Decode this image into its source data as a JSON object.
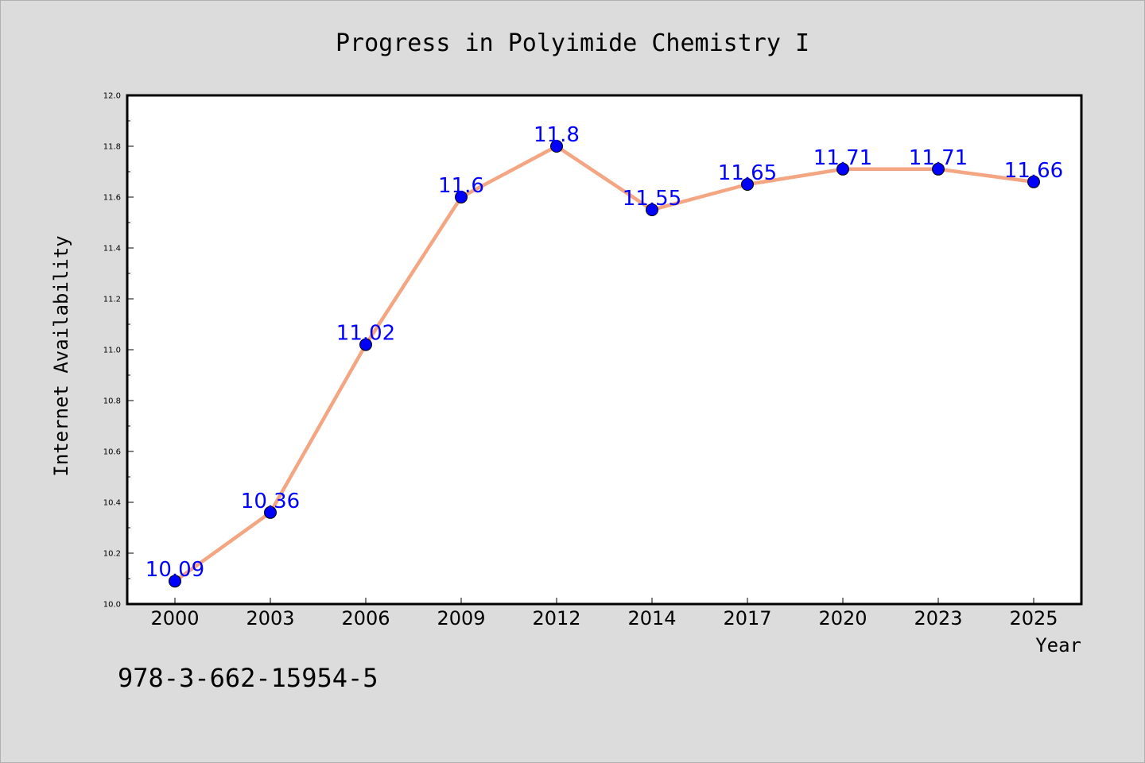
{
  "chart_data": {
    "type": "line",
    "title": "Progress in Polyimide Chemistry I",
    "xlabel": "Year",
    "ylabel": "Internet Availability",
    "categories": [
      "2000",
      "2003",
      "2006",
      "2009",
      "2012",
      "2014",
      "2017",
      "2020",
      "2023",
      "2025"
    ],
    "values": [
      10.09,
      10.36,
      11.02,
      11.6,
      11.8,
      11.55,
      11.65,
      11.71,
      11.71,
      11.66
    ],
    "data_labels": [
      "10.09",
      "10.36",
      "11.02",
      "11.6",
      "11.8",
      "11.55",
      "11.65",
      "11.71",
      "11.71",
      "11.66"
    ],
    "ylim": [
      10.0,
      12.0
    ],
    "yticks": [
      "10.0",
      "10.2",
      "10.4",
      "10.6",
      "10.8",
      "11.0",
      "11.2",
      "11.4",
      "11.6",
      "11.8",
      "12.0"
    ],
    "grid": false,
    "line_color": "#f4a582",
    "marker_color": "#0000ff",
    "label_color": "#0000ff",
    "background": "#dcdcdc",
    "plot_background": "#ffffff"
  },
  "footer": {
    "isbn": "978-3-662-15954-5"
  }
}
